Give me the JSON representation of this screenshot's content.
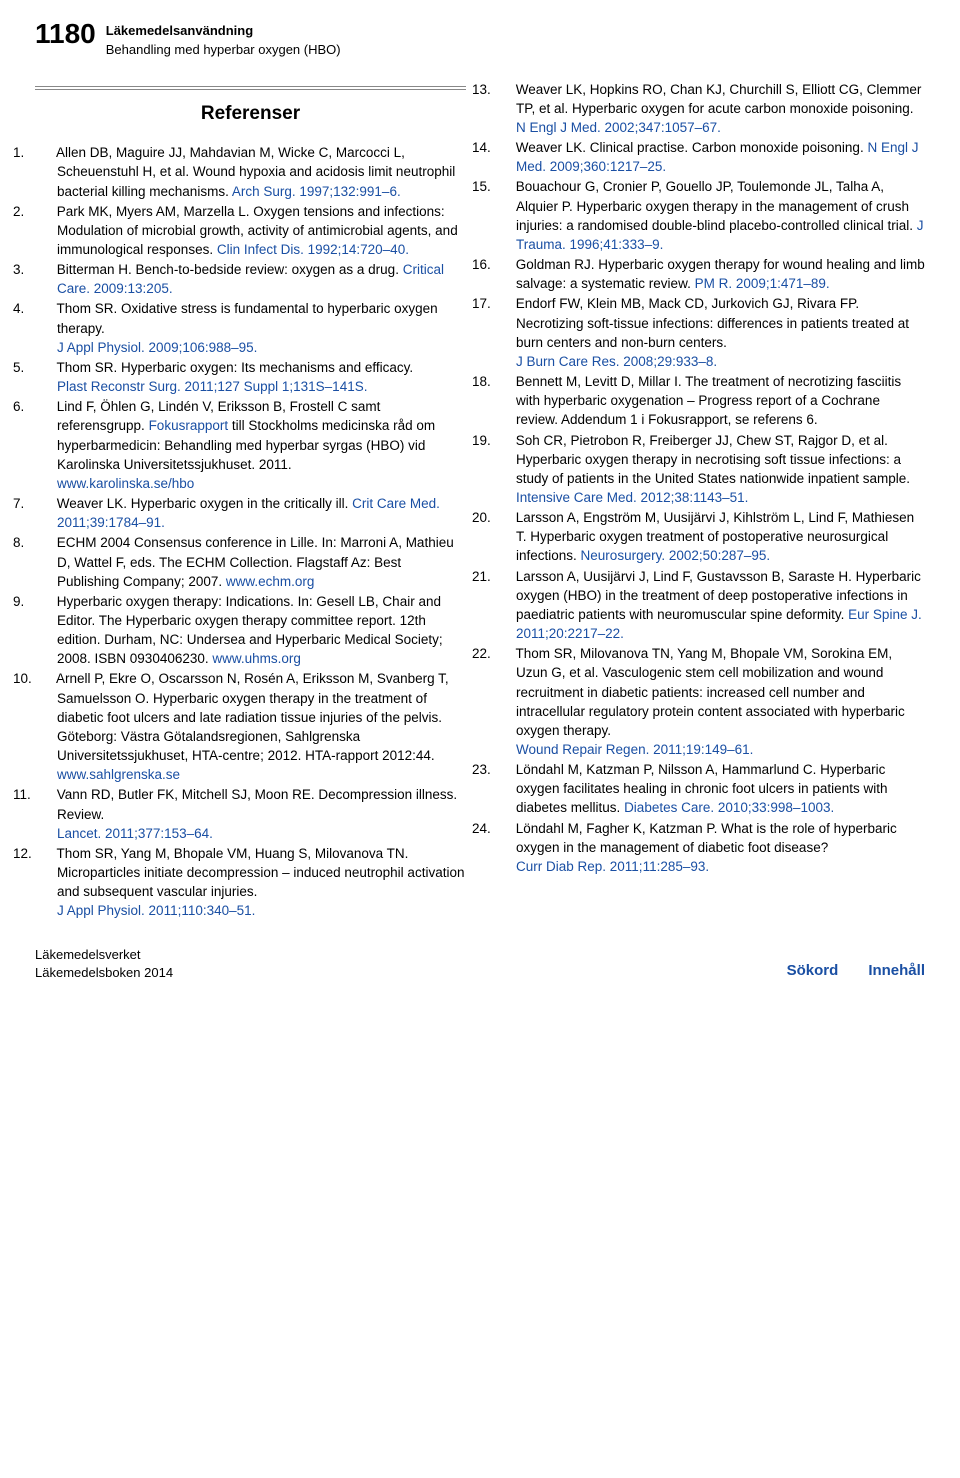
{
  "pageNumber": "1180",
  "chapterTitle": "Läkemedelsanvändning",
  "chapterSub": "Behandling med hyperbar oxygen (HBO)",
  "referencesHeading": "Referenser",
  "linkColor": "#1a4fa3",
  "leftRefs": [
    {
      "num": "1.",
      "text": "Allen DB, Maguire JJ, Mahdavian M, Wicke C, Marcocci L, Scheuenstuhl H, et al. Wound hypoxia and acidosis limit neutrophil bacterial killing mechanisms. ",
      "cite": "Arch Surg. 1997;132:991–6."
    },
    {
      "num": "2.",
      "text": "Park MK, Myers AM, Marzella L. Oxygen tensions and infections: Modulation of microbial growth, activity of antimicrobial agents, and immunological responses. ",
      "cite": "Clin Infect Dis. 1992;14:720–40."
    },
    {
      "num": "3.",
      "text": "Bitterman H. Bench-to-bedside review: oxygen as a drug. ",
      "cite": "Critical Care. 2009:13:205."
    },
    {
      "num": "4.",
      "text": "Thom SR. Oxidative stress is fundamental to hyperbaric oxygen therapy. ",
      "cite": "",
      "extra": "J Appl Physiol. 2009;106:988–95."
    },
    {
      "num": "5.",
      "text": "Thom SR. Hyperbaric oxygen: Its mechanisms and efficacy. ",
      "cite": "",
      "extra": "Plast Reconstr Surg. 2011;127 Suppl 1;131S–141S."
    },
    {
      "num": "6.",
      "text": "Lind F, Öhlen G, Lindén V, Eriksson B, Frostell C samt referensgrupp. ",
      "cite": "Fokusrapport",
      "aft": " till Stockholms medicinska råd om hyperbarmedicin: Behandling med hyperbar syrgas (HBO) vid Karolinska Universitetssjukhuset. 2011. ",
      "extra": "www.karolinska.se/hbo"
    },
    {
      "num": "7.",
      "text": "Weaver LK. Hyperbaric oxygen in the critically ill. ",
      "cite": "Crit Care Med. 2011;39:1784–91."
    },
    {
      "num": "8.",
      "text": "ECHM 2004 Consensus conference in Lille. In: Marroni A, Mathieu D, Wattel F, eds. The ECHM Collection. Flagstaff Az: Best Publishing Company; 2007. ",
      "cite": "www.echm.org"
    },
    {
      "num": "9.",
      "text": "Hyperbaric oxygen therapy: Indications. In: Gesell LB, Chair and Editor. The Hyperbaric oxygen therapy committee report. 12th edition. Durham, NC: Undersea and Hyperbaric Medical Society; 2008. ISBN 0930406230. ",
      "cite": "www.uhms.org"
    },
    {
      "num": "10.",
      "text": "Arnell P, Ekre O, Oscarsson N, Rosén A, Eriksson M, Svanberg T, Samuelsson O. Hyperbaric oxygen therapy in the treatment of diabetic foot ulcers and late radiation tissue injuries of the pelvis. Göteborg: Västra Götalandsregionen, Sahlgrenska Universitetssjukhuset, HTA-centre; 2012. HTA-rapport 2012:44. ",
      "cite": "www.sahlgrenska.se"
    },
    {
      "num": "11.",
      "text": "Vann RD, Butler FK, Mitchell SJ, Moon RE. Decompression illness. Review. ",
      "cite": "",
      "extra": "Lancet. 2011;377:153–64."
    },
    {
      "num": "12.",
      "text": "Thom SR, Yang M, Bhopale VM, Huang S, Milovanova TN. Microparticles initiate decompression – induced neutrophil activation and subsequent vascular injuries. ",
      "cite": "",
      "extra": "J Appl Physiol. 2011;110:340–51."
    }
  ],
  "rightRefs": [
    {
      "num": "13.",
      "text": "Weaver LK, Hopkins RO, Chan KJ, Churchill S, Elliott CG, Clemmer TP, et al. Hyperbaric oxygen for acute carbon monoxide poisoning. ",
      "cite": "",
      "extra": "N Engl J Med. 2002;347:1057–67."
    },
    {
      "num": "14.",
      "text": "Weaver LK. Clinical practise. Carbon monoxide poisoning. ",
      "cite": "N Engl J Med. 2009;360:1217–25."
    },
    {
      "num": "15.",
      "text": "Bouachour G, Cronier P, Gouello JP, Toulemonde JL, Talha A, Alquier P. Hyperbaric oxygen therapy in the management of crush injuries: a randomised double-blind placebo-controlled clinical trial. ",
      "cite": "J Trauma. 1996;41:333–9."
    },
    {
      "num": "16.",
      "text": "Goldman RJ. Hyperbaric oxygen therapy for wound healing and limb salvage: a systematic review. ",
      "cite": "PM R. 2009;1:471–89."
    },
    {
      "num": "17.",
      "text": "Endorf FW, Klein MB, Mack CD, Jurkovich GJ, Rivara FP. Necrotizing soft-tissue infections: differences in patients treated at burn centers and non-burn centers. ",
      "cite": "",
      "extra": "J Burn Care Res. 2008;29:933–8."
    },
    {
      "num": "18.",
      "text": "Bennett M, Levitt D, Millar I. The treatment of necrotizing fasciitis with hyperbaric oxygenation – Progress report of a Cochrane review. Addendum 1 i Fokusrapport, se referens 6.",
      "cite": ""
    },
    {
      "num": "19.",
      "text": "Soh CR, Pietrobon R, Freiberger JJ, Chew ST, Rajgor D, et al. Hyperbaric oxygen therapy in necrotising soft tissue infections: a study of patients in the United States nationwide inpatient sample. ",
      "cite": "Intensive Care Med. 2012;38:1143–51."
    },
    {
      "num": "20.",
      "text": "Larsson A, Engström M, Uusijärvi J, Kihlström L, Lind F, Mathiesen T. Hyperbaric oxygen treatment of postoperative neurosurgical infections. ",
      "cite": "Neurosurgery. 2002;50:287–95."
    },
    {
      "num": "21.",
      "text": "Larsson A, Uusijärvi J, Lind F, Gustavsson B, Saraste H. Hyperbaric oxygen (HBO) in the treatment of deep postoperative infections in paediatric patients with neuromuscular spine deformity. ",
      "cite": "Eur Spine J. 2011;20:2217–22."
    },
    {
      "num": "22.",
      "text": "Thom SR, Milovanova TN, Yang M, Bhopale VM, Sorokina EM, Uzun G, et al. Vasculogenic stem cell mobilization and wound recruitment in diabetic patients: increased cell number and intracellular regulatory protein content associated with hyperbaric oxygen therapy. ",
      "cite": "",
      "extra": "Wound Repair Regen. 2011;19:149–61."
    },
    {
      "num": "23.",
      "text": "Löndahl M, Katzman P, Nilsson A, Hammarlund C. Hyperbaric oxygen facilitates healing in chronic foot ulcers in patients with diabetes mellitus. ",
      "cite": "Diabetes Care. 2010;33:998–1003."
    },
    {
      "num": "24.",
      "text": "Löndahl M, Fagher K, Katzman P. What is the role of hyperbaric oxygen in the management of diabetic foot disease? ",
      "cite": "",
      "extra": "Curr Diab Rep. 2011;11:285–93."
    }
  ],
  "footer": {
    "agency": "Läkemedelsverket",
    "book": "Läkemedelsboken 2014",
    "sokord": "Sökord",
    "innehall": "Innehåll"
  }
}
